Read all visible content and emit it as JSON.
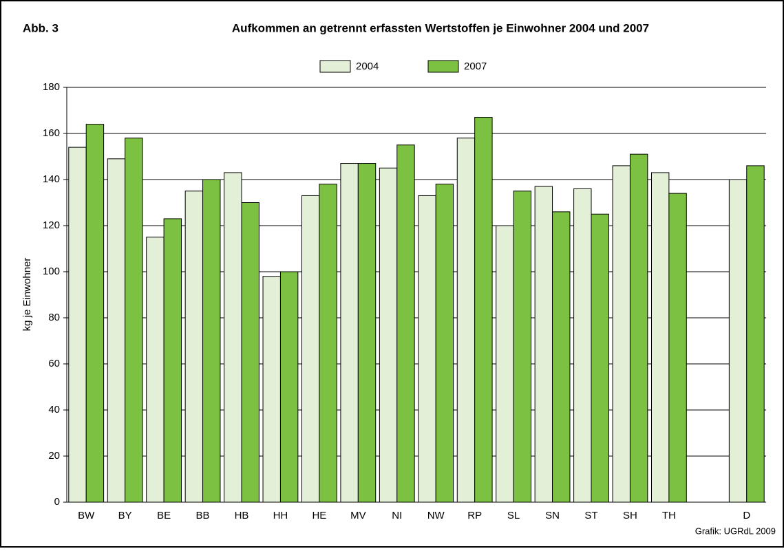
{
  "label": "Abb. 3",
  "credit": "Grafik: UGRdL 2009",
  "chart_data": {
    "type": "bar",
    "title": "Aufkommen an getrennt erfassten Wertstoffen je Einwohner 2004 und 2007",
    "ylabel": "kg je Einwohner",
    "categories": [
      "BW",
      "BY",
      "BE",
      "BB",
      "HB",
      "HH",
      "HE",
      "MV",
      "NI",
      "NW",
      "RP",
      "SL",
      "SN",
      "ST",
      "SH",
      "TH",
      null,
      "D"
    ],
    "series": [
      {
        "name": "2004",
        "color": "#e3efd6",
        "values": [
          154,
          149,
          115,
          135,
          143,
          98,
          133,
          147,
          145,
          133,
          158,
          120,
          137,
          136,
          146,
          143,
          null,
          140
        ]
      },
      {
        "name": "2007",
        "color": "#7cc142",
        "values": [
          164,
          158,
          123,
          140,
          130,
          100,
          138,
          147,
          155,
          138,
          167,
          135,
          126,
          125,
          151,
          134,
          null,
          146
        ]
      }
    ],
    "ylim": [
      0,
      180
    ],
    "yticks": [
      0,
      20,
      40,
      60,
      80,
      100,
      120,
      140,
      160,
      180
    ],
    "grid": true,
    "legend": "top"
  }
}
